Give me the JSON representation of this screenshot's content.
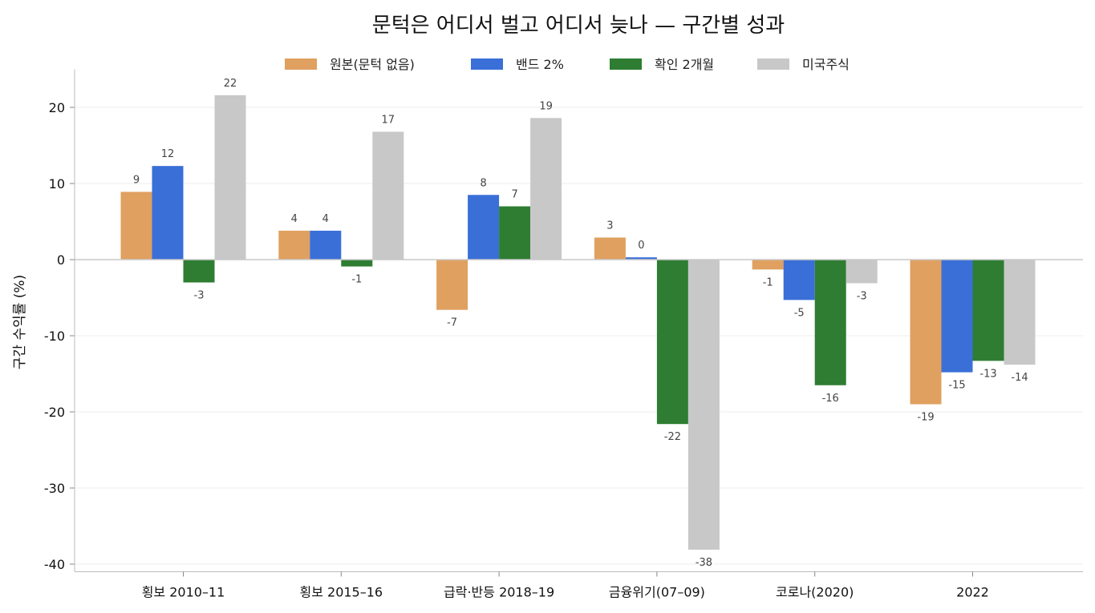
{
  "chart_data": {
    "type": "bar",
    "title": "문턱은 어디서 벌고 어디서 늦나 — 구간별 성과",
    "ylabel": "구간 수익률 (%)",
    "xlabel": "",
    "categories": [
      "횡보 2010–11",
      "횡보 2015–16",
      "급락·반등 2018–19",
      "금융위기(07–09)",
      "코로나(2020)",
      "2022"
    ],
    "ylim": [
      -41,
      25
    ],
    "yticks": [
      20,
      10,
      0,
      -10,
      -20,
      -30,
      -40
    ],
    "grid": "horizontal",
    "legend_position": "top-center",
    "series": [
      {
        "name": "원본(문턱 없음)",
        "color": "#e0a060",
        "values": [
          8.9,
          3.8,
          -6.6,
          2.9,
          -1.3,
          -19.0
        ],
        "labels": [
          "9",
          "4",
          "-7",
          "3",
          "-1",
          "-19"
        ]
      },
      {
        "name": "밴드 2%",
        "color": "#3a6fd8",
        "values": [
          12.3,
          3.8,
          8.5,
          0.3,
          -5.3,
          -14.8
        ],
        "labels": [
          "12",
          "4",
          "8",
          "0",
          "-5",
          "-15"
        ]
      },
      {
        "name": "확인 2개월",
        "color": "#2e7d32",
        "values": [
          -3.0,
          -0.9,
          7.0,
          -21.6,
          -16.5,
          -13.3
        ],
        "labels": [
          "-3",
          "-1",
          "7",
          "-22",
          "-16",
          "-13"
        ]
      },
      {
        "name": "미국주식",
        "color": "#c8c8c8",
        "values": [
          21.6,
          16.8,
          18.6,
          -38.1,
          -3.1,
          -13.8
        ],
        "labels": [
          "22",
          "17",
          "19",
          "-38",
          "-3",
          "-14"
        ]
      }
    ]
  }
}
